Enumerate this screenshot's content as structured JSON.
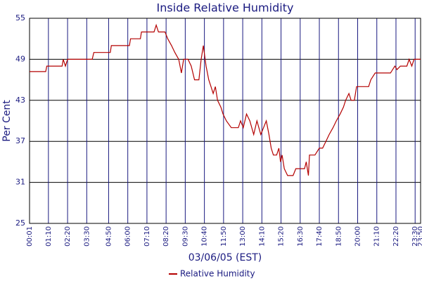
{
  "chart_data": {
    "type": "line",
    "title": "Inside Relative Humidity",
    "ylabel": "Per Cent",
    "xlabel": "03/06/05 (EST)",
    "xlim": [
      1,
      1430
    ],
    "ylim": [
      25,
      55
    ],
    "yticks": [
      25,
      31,
      37,
      43,
      49,
      55
    ],
    "xticks": [
      {
        "value": 1,
        "label": "00:01"
      },
      {
        "value": 70,
        "label": "01:10"
      },
      {
        "value": 140,
        "label": "02:20"
      },
      {
        "value": 210,
        "label": "03:30"
      },
      {
        "value": 290,
        "label": "04:50"
      },
      {
        "value": 360,
        "label": "06:00"
      },
      {
        "value": 430,
        "label": "07:10"
      },
      {
        "value": 500,
        "label": "08:20"
      },
      {
        "value": 570,
        "label": "09:30"
      },
      {
        "value": 640,
        "label": "10:40"
      },
      {
        "value": 710,
        "label": "11:50"
      },
      {
        "value": 780,
        "label": "13:00"
      },
      {
        "value": 850,
        "label": "14:10"
      },
      {
        "value": 920,
        "label": "15:20"
      },
      {
        "value": 990,
        "label": "16:30"
      },
      {
        "value": 1060,
        "label": "17:40"
      },
      {
        "value": 1130,
        "label": "18:50"
      },
      {
        "value": 1200,
        "label": "20:00"
      },
      {
        "value": 1270,
        "label": "21:10"
      },
      {
        "value": 1340,
        "label": "22:20"
      },
      {
        "value": 1410,
        "label": "23:30"
      },
      {
        "value": 1430,
        "label": "23:50"
      }
    ],
    "grid": true,
    "legend": "bottom",
    "series": [
      {
        "name": "Relative Humidity",
        "color": "#b40000",
        "x": [
          1,
          60,
          64,
          120,
          124,
          132,
          140,
          230,
          236,
          296,
          300,
          366,
          370,
          406,
          410,
          456,
          464,
          472,
          496,
          506,
          520,
          532,
          546,
          556,
          564,
          580,
          592,
          604,
          620,
          628,
          636,
          646,
          656,
          664,
          672,
          680,
          688,
          700,
          708,
          720,
          738,
          764,
          772,
          782,
          794,
          806,
          820,
          832,
          846,
          856,
          866,
          876,
          884,
          892,
          904,
          912,
          918,
          924,
          932,
          944,
          964,
          974,
          1006,
          1012,
          1020,
          1024,
          1044,
          1060,
          1072,
          1084,
          1096,
          1110,
          1122,
          1136,
          1148,
          1156,
          1168,
          1176,
          1188,
          1196,
          1240,
          1248,
          1264,
          1320,
          1336,
          1344,
          1356,
          1380,
          1388,
          1398,
          1406,
          1424,
          1430
        ],
        "values": [
          47.2,
          47.2,
          48,
          48,
          49,
          48,
          49,
          49,
          50,
          50,
          51,
          51,
          52,
          52,
          53,
          53,
          54,
          53,
          53,
          52,
          51,
          50,
          49,
          47,
          49,
          49,
          48,
          46,
          46,
          49,
          51,
          48,
          46,
          45,
          44,
          45,
          43,
          42,
          41,
          40,
          39,
          39,
          40,
          39,
          41,
          40,
          38,
          40,
          38,
          39,
          40,
          38,
          36,
          35,
          35,
          36,
          34,
          35,
          33,
          32,
          32,
          33,
          33,
          34,
          32,
          35,
          35,
          36,
          36,
          37,
          38,
          39,
          40,
          41,
          42,
          43,
          44,
          43,
          43,
          45,
          45,
          46,
          47,
          47,
          48,
          47.5,
          48,
          48,
          49,
          48,
          49,
          49,
          49
        ]
      }
    ]
  }
}
